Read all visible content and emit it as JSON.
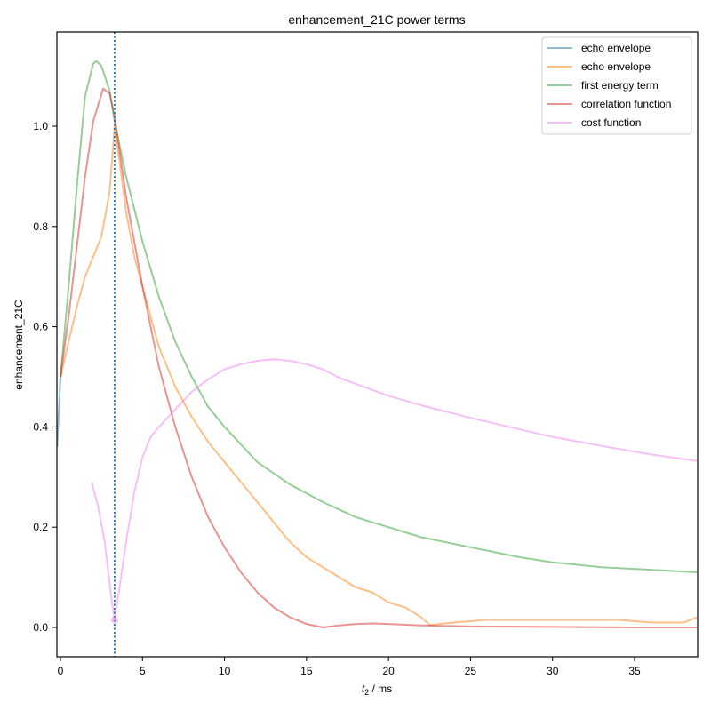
{
  "chart_data": {
    "type": "line",
    "title": "enhancement_21C power terms",
    "xlabel": "t2 / ms",
    "xlabel_main": "t",
    "xlabel_sub": "2",
    "xlabel_rest": " / ms",
    "ylabel": "enhancement_21C",
    "xlim": [
      -0.2,
      38.8
    ],
    "ylim": [
      -0.06,
      1.18
    ],
    "xticks": [
      0,
      5,
      10,
      15,
      20,
      25,
      30,
      35
    ],
    "yticks": [
      0.0,
      0.2,
      0.4,
      0.6,
      0.8,
      1.0
    ],
    "ytick_labels": [
      "0.0",
      "0.2",
      "0.4",
      "0.6",
      "0.8",
      "1.0"
    ],
    "grid": false,
    "legend_position": "upper right",
    "vline": {
      "x": 3.3,
      "style": "dotted",
      "color": "#1f77b4"
    },
    "marker": {
      "series": "cost function",
      "x": 3.3,
      "y": 0.015
    },
    "series": [
      {
        "name": "echo envelope",
        "color": "#1f77b4",
        "x": [
          -0.2,
          0.0,
          0.1
        ],
        "y": [
          0.36,
          0.5,
          0.51
        ]
      },
      {
        "name": "echo envelope",
        "color": "#ff7f0e",
        "x": [
          0.0,
          0.5,
          1.0,
          1.5,
          2.0,
          2.5,
          3.0,
          3.3,
          3.6,
          4.0,
          4.5,
          5.0,
          5.5,
          6.0,
          7.0,
          8.0,
          9.0,
          10.0,
          11.0,
          12.0,
          13.0,
          14.0,
          15.0,
          16.0,
          17.0,
          18.0,
          19.0,
          20.0,
          21.0,
          22.0,
          22.5,
          24.0,
          26.0,
          28.0,
          30.0,
          32.0,
          34.0,
          36.0,
          38.0,
          38.8
        ],
        "y": [
          0.5,
          0.57,
          0.64,
          0.7,
          0.74,
          0.78,
          0.87,
          1.0,
          0.93,
          0.83,
          0.74,
          0.68,
          0.62,
          0.56,
          0.48,
          0.42,
          0.37,
          0.33,
          0.29,
          0.25,
          0.21,
          0.17,
          0.14,
          0.12,
          0.1,
          0.08,
          0.07,
          0.05,
          0.04,
          0.02,
          0.005,
          0.01,
          0.015,
          0.015,
          0.015,
          0.015,
          0.015,
          0.01,
          0.01,
          0.02
        ]
      },
      {
        "name": "first energy term",
        "color": "#2ca02c",
        "x": [
          0.0,
          0.5,
          1.0,
          1.5,
          2.0,
          2.2,
          2.5,
          3.0,
          3.3,
          4.0,
          5.0,
          6.0,
          7.0,
          8.0,
          9.0,
          10.0,
          12.0,
          14.0,
          16.0,
          18.0,
          20.0,
          22.0,
          25.0,
          28.0,
          30.0,
          33.0,
          36.0,
          38.8
        ],
        "y": [
          0.5,
          0.68,
          0.88,
          1.06,
          1.125,
          1.13,
          1.12,
          1.07,
          1.01,
          0.9,
          0.77,
          0.66,
          0.57,
          0.5,
          0.44,
          0.4,
          0.33,
          0.285,
          0.25,
          0.22,
          0.2,
          0.18,
          0.16,
          0.14,
          0.13,
          0.12,
          0.115,
          0.11
        ]
      },
      {
        "name": "correlation function",
        "color": "#d62728",
        "x": [
          0.0,
          0.5,
          1.0,
          1.5,
          2.0,
          2.6,
          3.0,
          3.3,
          4.0,
          5.0,
          6.0,
          7.0,
          8.0,
          9.0,
          10.0,
          11.0,
          12.0,
          13.0,
          14.0,
          15.0,
          16.0,
          17.0,
          18.0,
          19.0,
          20.0,
          22.0,
          25.0,
          30.0,
          35.0,
          38.8
        ],
        "y": [
          0.5,
          0.62,
          0.76,
          0.9,
          1.01,
          1.075,
          1.065,
          1.02,
          0.86,
          0.68,
          0.52,
          0.4,
          0.3,
          0.22,
          0.16,
          0.11,
          0.07,
          0.04,
          0.02,
          0.007,
          0.0,
          0.004,
          0.007,
          0.008,
          0.007,
          0.004,
          0.002,
          0.001,
          0.0,
          0.0
        ]
      },
      {
        "name": "cost function",
        "color": "#ee82ee",
        "x": [
          1.9,
          2.3,
          2.7,
          3.1,
          3.3,
          3.6,
          4.0,
          4.5,
          5.0,
          5.5,
          6.0,
          7.0,
          8.0,
          9.0,
          10.0,
          11.0,
          12.0,
          13.0,
          14.0,
          15.0,
          16.0,
          17.0,
          18.0,
          20.0,
          22.0,
          25.0,
          28.0,
          30.0,
          33.0,
          36.0,
          38.8
        ],
        "y": [
          0.29,
          0.24,
          0.17,
          0.06,
          0.015,
          0.08,
          0.17,
          0.27,
          0.34,
          0.38,
          0.4,
          0.435,
          0.47,
          0.495,
          0.515,
          0.525,
          0.532,
          0.535,
          0.532,
          0.525,
          0.515,
          0.498,
          0.486,
          0.462,
          0.443,
          0.418,
          0.395,
          0.38,
          0.362,
          0.345,
          0.332
        ]
      }
    ]
  }
}
